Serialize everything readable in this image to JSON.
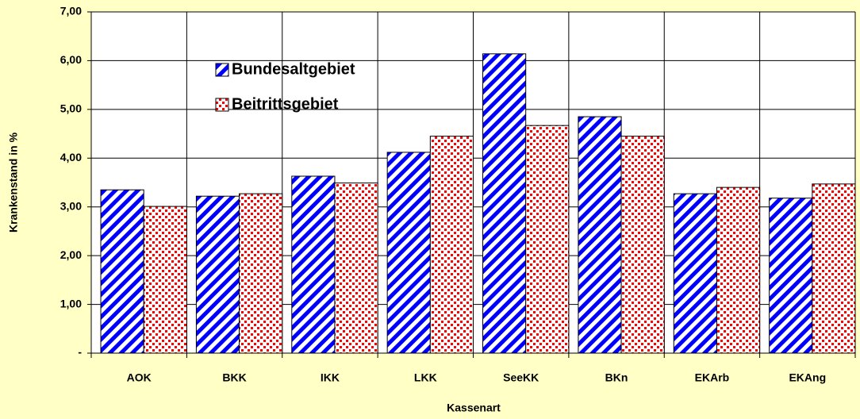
{
  "chart_data": {
    "type": "bar",
    "xlabel": "Kassenart",
    "ylabel": "Krankenstand in %",
    "categories": [
      "AOK",
      "BKK",
      "IKK",
      "LKK",
      "SeeKK",
      "BKn",
      "EKArb",
      "EKAng"
    ],
    "series": [
      {
        "name": "Bundesaltgebiet",
        "color": "#0000ff",
        "values": [
          3.35,
          3.22,
          3.63,
          4.12,
          6.14,
          4.85,
          3.27,
          3.18
        ]
      },
      {
        "name": "Beitrittsgebiet",
        "color": "#ff0000",
        "values": [
          3.01,
          3.27,
          3.49,
          4.45,
          4.67,
          4.45,
          3.4,
          3.47
        ]
      }
    ],
    "ylim": [
      0,
      7
    ],
    "yticks": [
      {
        "value": 0,
        "label": "-"
      },
      {
        "value": 1,
        "label": "1,00"
      },
      {
        "value": 2,
        "label": "2,00"
      },
      {
        "value": 3,
        "label": "3,00"
      },
      {
        "value": 4,
        "label": "4,00"
      },
      {
        "value": 5,
        "label": "5,00"
      },
      {
        "value": 6,
        "label": "6,00"
      },
      {
        "value": 7,
        "label": "7,00"
      }
    ],
    "grid": true,
    "legend": "upper-left"
  }
}
